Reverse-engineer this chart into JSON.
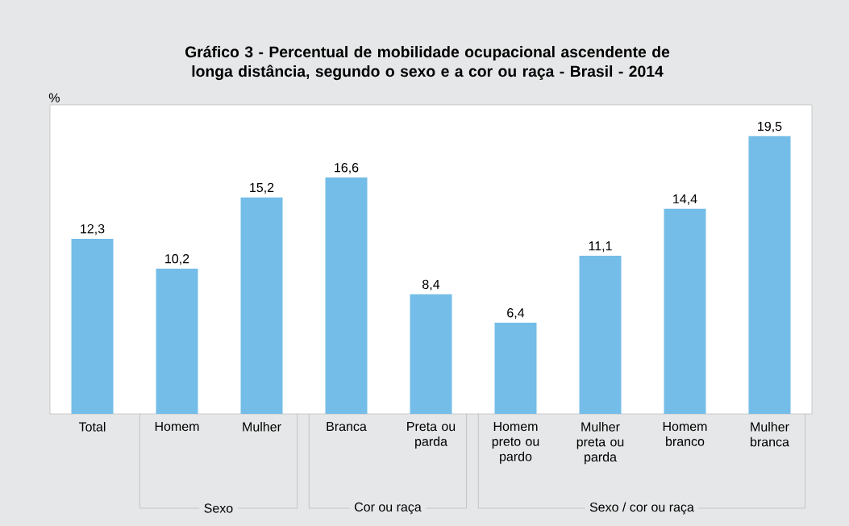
{
  "chart_data": {
    "type": "bar",
    "title": "Gráfico 3 - Percentual de mobilidade ocupacional ascendente de longa distância, segundo o sexo e a cor ou raça - Brasil - 2014",
    "ylabel": "%",
    "categories": [
      "Total",
      "Homem",
      "Mulher",
      "Branca",
      "Preta ou parda",
      "Homem preto ou pardo",
      "Mulher preta ou parda",
      "Homem branco",
      "Mulher branca"
    ],
    "values": [
      12.3,
      10.2,
      15.2,
      16.6,
      8.4,
      6.4,
      11.1,
      14.4,
      19.5
    ],
    "value_labels": [
      "12,3",
      "10,2",
      "15,2",
      "16,6",
      "8,4",
      "6,4",
      "11,1",
      "14,4",
      "19,5"
    ],
    "color": "#74bde8",
    "ylim": [
      0,
      21.7
    ],
    "annotations": [
      "Sexo",
      "Cor ou raça",
      "Sexo / cor ou raça"
    ]
  }
}
